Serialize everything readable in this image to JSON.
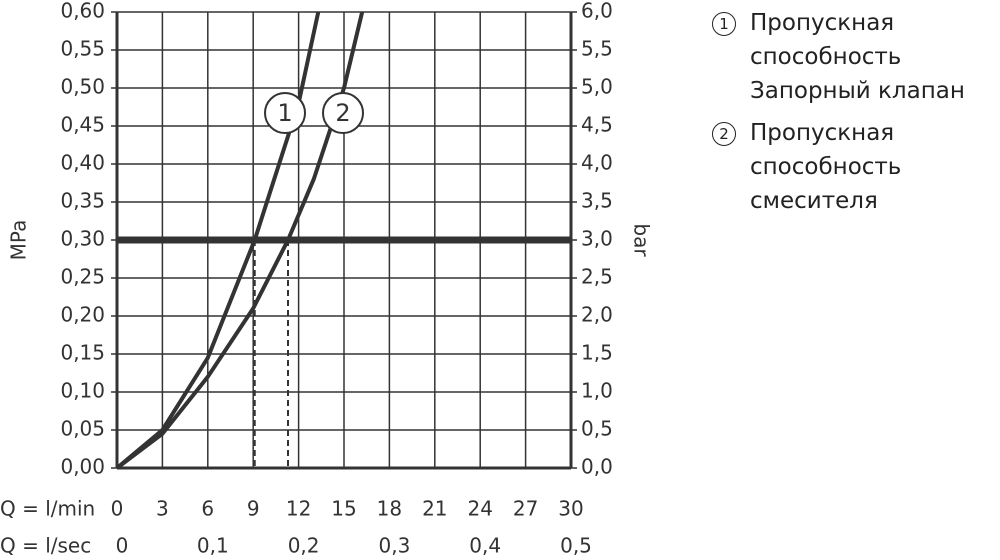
{
  "chart_data": {
    "type": "line",
    "y_label": "MPa",
    "y2_label": "bar",
    "x_label": "Q = l/min",
    "x2_label": "Q = l/sec",
    "xlim": [
      0,
      30
    ],
    "xticks": [
      0,
      3,
      6,
      9,
      12,
      15,
      18,
      21,
      24,
      27,
      30
    ],
    "x2lim": [
      0,
      0.5
    ],
    "x2ticks": [
      0,
      {
        "value": 0.1,
        "label": "0,1"
      },
      {
        "value": 0.2,
        "label": "0,2"
      },
      {
        "value": 0.3,
        "label": "0,3"
      },
      {
        "value": 0.4,
        "label": "0,4"
      },
      {
        "value": 0.5,
        "label": "0,5"
      }
    ],
    "ylim": [
      0,
      0.6
    ],
    "yticks": [
      {
        "value": 0,
        "label": "0,00"
      },
      {
        "value": 0.05,
        "label": "0,05"
      },
      {
        "value": 0.1,
        "label": "0,10"
      },
      {
        "value": 0.15,
        "label": "0,15"
      },
      {
        "value": 0.2,
        "label": "0,20"
      },
      {
        "value": 0.25,
        "label": "0,25"
      },
      {
        "value": 0.3,
        "label": "0,30"
      },
      {
        "value": 0.35,
        "label": "0,35"
      },
      {
        "value": 0.4,
        "label": "0,40"
      },
      {
        "value": 0.45,
        "label": "0,45"
      },
      {
        "value": 0.5,
        "label": "0,50"
      },
      {
        "value": 0.55,
        "label": "0,55"
      },
      {
        "value": 0.6,
        "label": "0,60"
      }
    ],
    "y2lim": [
      0,
      6
    ],
    "y2ticks": [
      {
        "value": 0,
        "label": "0,0"
      },
      {
        "value": 0.5,
        "label": "0,5"
      },
      {
        "value": 1,
        "label": "1,0"
      },
      {
        "value": 1.5,
        "label": "1,5"
      },
      {
        "value": 2,
        "label": "2,0"
      },
      {
        "value": 2.5,
        "label": "2,5"
      },
      {
        "value": 3,
        "label": "3,0"
      },
      {
        "value": 3.5,
        "label": "3,5"
      },
      {
        "value": 4,
        "label": "4,0"
      },
      {
        "value": 4.5,
        "label": "4,5"
      },
      {
        "value": 5,
        "label": "5,0"
      },
      {
        "value": 5.5,
        "label": "5,5"
      },
      {
        "value": 6,
        "label": "6,0"
      }
    ],
    "hline": 0.3,
    "grid": true,
    "series": [
      {
        "name": "Пропускная\nспособность\nЗапорный клапан",
        "label": "1",
        "color": "#333333",
        "x": [
          0,
          3,
          6,
          9.1,
          12,
          13.3
        ],
        "values": [
          0,
          0.05,
          0.145,
          0.3,
          0.48,
          0.6
        ]
      },
      {
        "name": "Пропускная\nспособность\nсмесителя",
        "label": "2",
        "color": "#333333",
        "x": [
          0,
          3,
          6,
          9,
          11.3,
          13,
          15,
          16.2
        ],
        "values": [
          0,
          0.045,
          0.12,
          0.21,
          0.3,
          0.38,
          0.5,
          0.6
        ]
      }
    ]
  }
}
